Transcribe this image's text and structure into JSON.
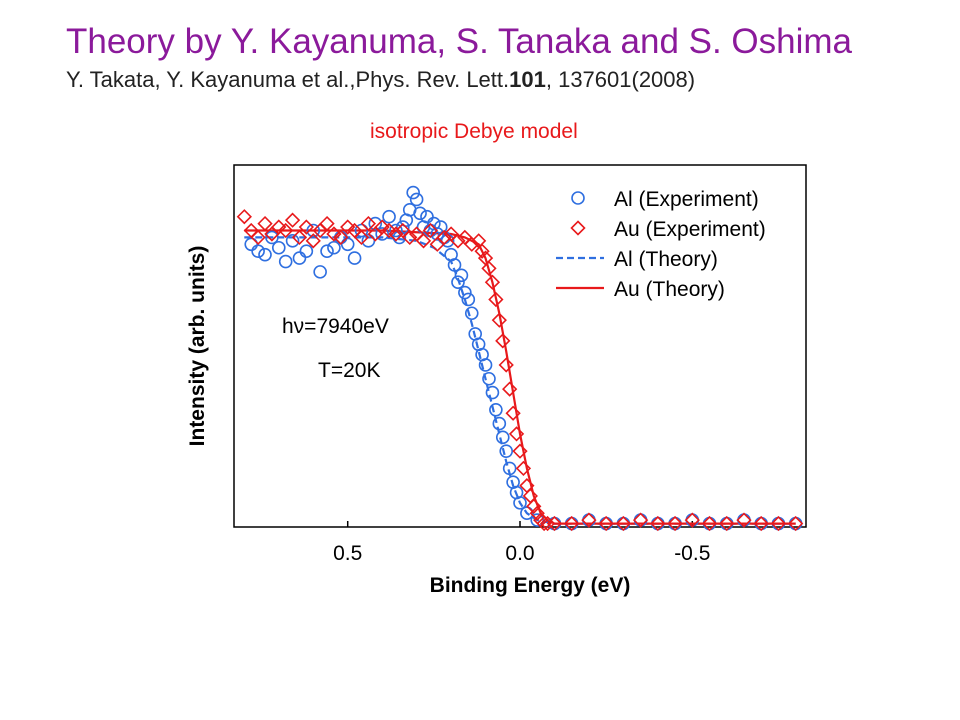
{
  "header": {
    "title": "Theory by Y. Kayanuma, S. Tanaka and S. Oshima",
    "citation_prefix": "Y. Takata, Y. Kayanuma et al.,Phys. Rev. Lett.",
    "citation_volume": "101",
    "citation_suffix": ", 137601(2008)"
  },
  "model_label": "isotropic Debye model",
  "chart_data": {
    "type": "scatter",
    "xlabel": "Binding Energy (eV)",
    "ylabel": "Intensity (arb. units)",
    "x_reversed": true,
    "xlim": [
      0.83,
      -0.83
    ],
    "ylim": [
      0.0,
      1.05
    ],
    "x_ticks": [
      0.5,
      0.0,
      -0.5
    ],
    "x_tick_labels": [
      "0.5",
      "0.0",
      "-0.5"
    ],
    "y_ticks_labeled": false,
    "grid": false,
    "legend_position": "top-right",
    "annotations": [
      "hν=7940eV",
      "T=20K"
    ],
    "series": [
      {
        "name": "Al (Experiment)",
        "kind": "points",
        "marker": "circle",
        "color": "#2f6fe0",
        "x": [
          0.78,
          0.76,
          0.74,
          0.72,
          0.7,
          0.68,
          0.66,
          0.64,
          0.62,
          0.6,
          0.58,
          0.56,
          0.54,
          0.52,
          0.5,
          0.48,
          0.46,
          0.44,
          0.42,
          0.4,
          0.38,
          0.36,
          0.35,
          0.34,
          0.33,
          0.32,
          0.31,
          0.3,
          0.29,
          0.28,
          0.27,
          0.26,
          0.25,
          0.24,
          0.23,
          0.22,
          0.21,
          0.2,
          0.19,
          0.18,
          0.17,
          0.16,
          0.15,
          0.14,
          0.13,
          0.12,
          0.11,
          0.1,
          0.09,
          0.08,
          0.07,
          0.06,
          0.05,
          0.04,
          0.03,
          0.02,
          0.01,
          0.0,
          -0.02,
          -0.05,
          -0.1,
          -0.15,
          -0.2,
          -0.25,
          -0.3,
          -0.35,
          -0.4,
          -0.45,
          -0.5,
          -0.55,
          -0.6,
          -0.65,
          -0.7,
          -0.75,
          -0.8
        ],
        "y": [
          0.82,
          0.8,
          0.79,
          0.84,
          0.81,
          0.77,
          0.83,
          0.78,
          0.8,
          0.86,
          0.74,
          0.8,
          0.81,
          0.84,
          0.82,
          0.78,
          0.86,
          0.83,
          0.88,
          0.85,
          0.9,
          0.86,
          0.84,
          0.87,
          0.89,
          0.92,
          0.97,
          0.95,
          0.91,
          0.87,
          0.9,
          0.86,
          0.88,
          0.85,
          0.87,
          0.84,
          0.83,
          0.79,
          0.76,
          0.71,
          0.73,
          0.68,
          0.66,
          0.62,
          0.56,
          0.53,
          0.5,
          0.47,
          0.43,
          0.39,
          0.34,
          0.3,
          0.26,
          0.22,
          0.17,
          0.13,
          0.1,
          0.07,
          0.04,
          0.02,
          0.01,
          0.01,
          0.02,
          0.01,
          0.01,
          0.02,
          0.01,
          0.01,
          0.02,
          0.01,
          0.01,
          0.02,
          0.01,
          0.01,
          0.01
        ]
      },
      {
        "name": "Au (Experiment)",
        "kind": "points",
        "marker": "diamond",
        "color": "#e8191b",
        "x": [
          0.8,
          0.78,
          0.76,
          0.74,
          0.72,
          0.7,
          0.68,
          0.66,
          0.64,
          0.62,
          0.6,
          0.58,
          0.56,
          0.54,
          0.52,
          0.5,
          0.48,
          0.46,
          0.44,
          0.42,
          0.4,
          0.38,
          0.36,
          0.34,
          0.32,
          0.3,
          0.28,
          0.26,
          0.24,
          0.22,
          0.2,
          0.18,
          0.16,
          0.14,
          0.12,
          0.11,
          0.1,
          0.09,
          0.08,
          0.07,
          0.06,
          0.05,
          0.04,
          0.03,
          0.02,
          0.01,
          0.0,
          -0.01,
          -0.02,
          -0.03,
          -0.04,
          -0.05,
          -0.06,
          -0.07,
          -0.08,
          -0.1,
          -0.15,
          -0.2,
          -0.25,
          -0.3,
          -0.35,
          -0.4,
          -0.45,
          -0.5,
          -0.55,
          -0.6,
          -0.65,
          -0.7,
          -0.75,
          -0.8
        ],
        "y": [
          0.9,
          0.86,
          0.84,
          0.88,
          0.85,
          0.87,
          0.86,
          0.89,
          0.84,
          0.87,
          0.83,
          0.86,
          0.88,
          0.85,
          0.84,
          0.87,
          0.86,
          0.84,
          0.88,
          0.85,
          0.87,
          0.86,
          0.85,
          0.86,
          0.84,
          0.85,
          0.83,
          0.86,
          0.82,
          0.84,
          0.85,
          0.83,
          0.84,
          0.82,
          0.83,
          0.8,
          0.78,
          0.75,
          0.71,
          0.66,
          0.6,
          0.54,
          0.47,
          0.4,
          0.33,
          0.27,
          0.22,
          0.17,
          0.12,
          0.09,
          0.06,
          0.04,
          0.02,
          0.01,
          0.01,
          0.01,
          0.01,
          0.02,
          0.01,
          0.01,
          0.02,
          0.01,
          0.01,
          0.02,
          0.01,
          0.01,
          0.02,
          0.01,
          0.01,
          0.01
        ]
      },
      {
        "name": "Al (Theory)",
        "kind": "line",
        "dash": "dashed",
        "color": "#2f6fe0",
        "x": [
          0.8,
          0.6,
          0.4,
          0.3,
          0.25,
          0.2,
          0.18,
          0.16,
          0.14,
          0.12,
          0.1,
          0.08,
          0.06,
          0.04,
          0.02,
          0.0,
          -0.02,
          -0.05,
          -0.1,
          -0.8
        ],
        "y": [
          0.84,
          0.84,
          0.84,
          0.83,
          0.81,
          0.77,
          0.72,
          0.66,
          0.59,
          0.51,
          0.43,
          0.35,
          0.27,
          0.19,
          0.12,
          0.07,
          0.04,
          0.02,
          0.01,
          0.01
        ]
      },
      {
        "name": "Au (Theory)",
        "kind": "line",
        "dash": "solid",
        "color": "#e8191b",
        "x": [
          0.8,
          0.4,
          0.2,
          0.16,
          0.12,
          0.1,
          0.08,
          0.06,
          0.04,
          0.02,
          0.0,
          -0.02,
          -0.04,
          -0.06,
          -0.08,
          -0.1,
          -0.8
        ],
        "y": [
          0.86,
          0.86,
          0.85,
          0.84,
          0.82,
          0.78,
          0.71,
          0.62,
          0.51,
          0.39,
          0.27,
          0.17,
          0.09,
          0.04,
          0.02,
          0.01,
          0.01
        ]
      }
    ]
  }
}
